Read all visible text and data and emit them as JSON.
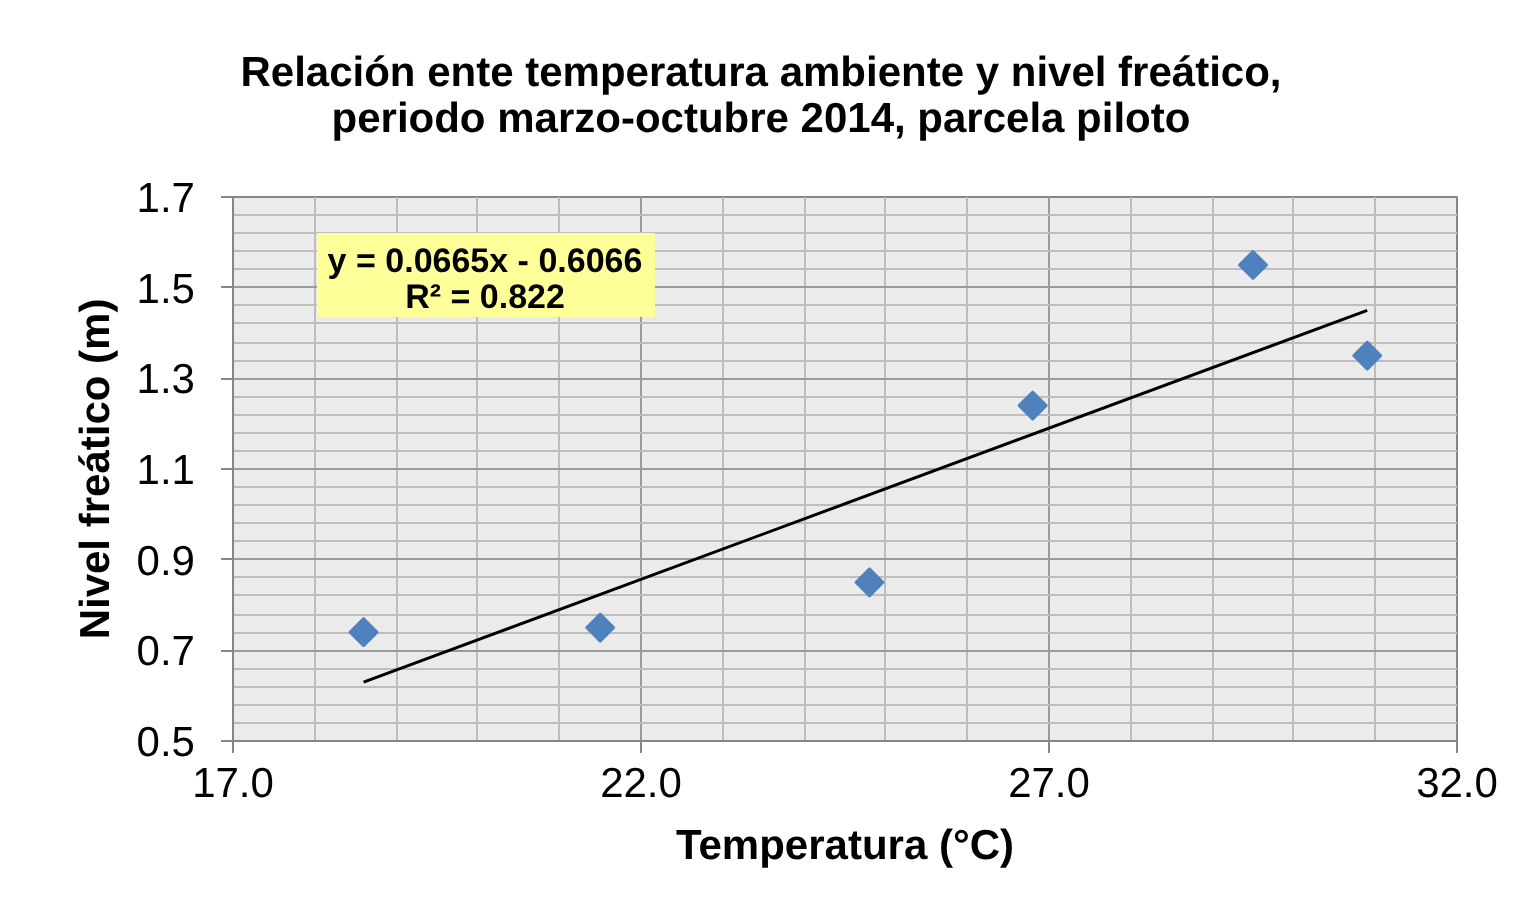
{
  "chart_data": {
    "type": "scatter",
    "title": "Relación ente temperatura ambiente y nivel freático,\nperiodo marzo-octubre 2014, parcela piloto",
    "xlabel": "Temperatura (°C)",
    "ylabel": "Nivel freático (m)",
    "xlim": [
      17,
      32
    ],
    "xticks": [
      {
        "value": 17,
        "label": "17.0"
      },
      {
        "value": 22,
        "label": "22.0"
      },
      {
        "value": 27,
        "label": "27.0"
      },
      {
        "value": 32,
        "label": "32.0"
      }
    ],
    "ylim": [
      0.5,
      1.7
    ],
    "yticks": [
      0.5,
      0.7,
      0.9,
      1.1,
      1.3,
      1.5,
      1.7
    ],
    "grid": true,
    "marker": "diamond",
    "series": [
      {
        "color": "#4f81bd",
        "x": [
          18.6,
          21.5,
          24.8,
          26.8,
          29.5,
          30.9
        ],
        "values": [
          0.74,
          0.75,
          0.85,
          1.24,
          1.55,
          1.35
        ]
      },
      {
        "type": "line",
        "color": "#000000",
        "marker": "none",
        "x": [
          18.6,
          30.9
        ],
        "values": [
          0.63,
          1.45
        ]
      }
    ],
    "annotations": [
      "y = 0.0665x - 0.6066",
      "R² = 0.822"
    ]
  }
}
